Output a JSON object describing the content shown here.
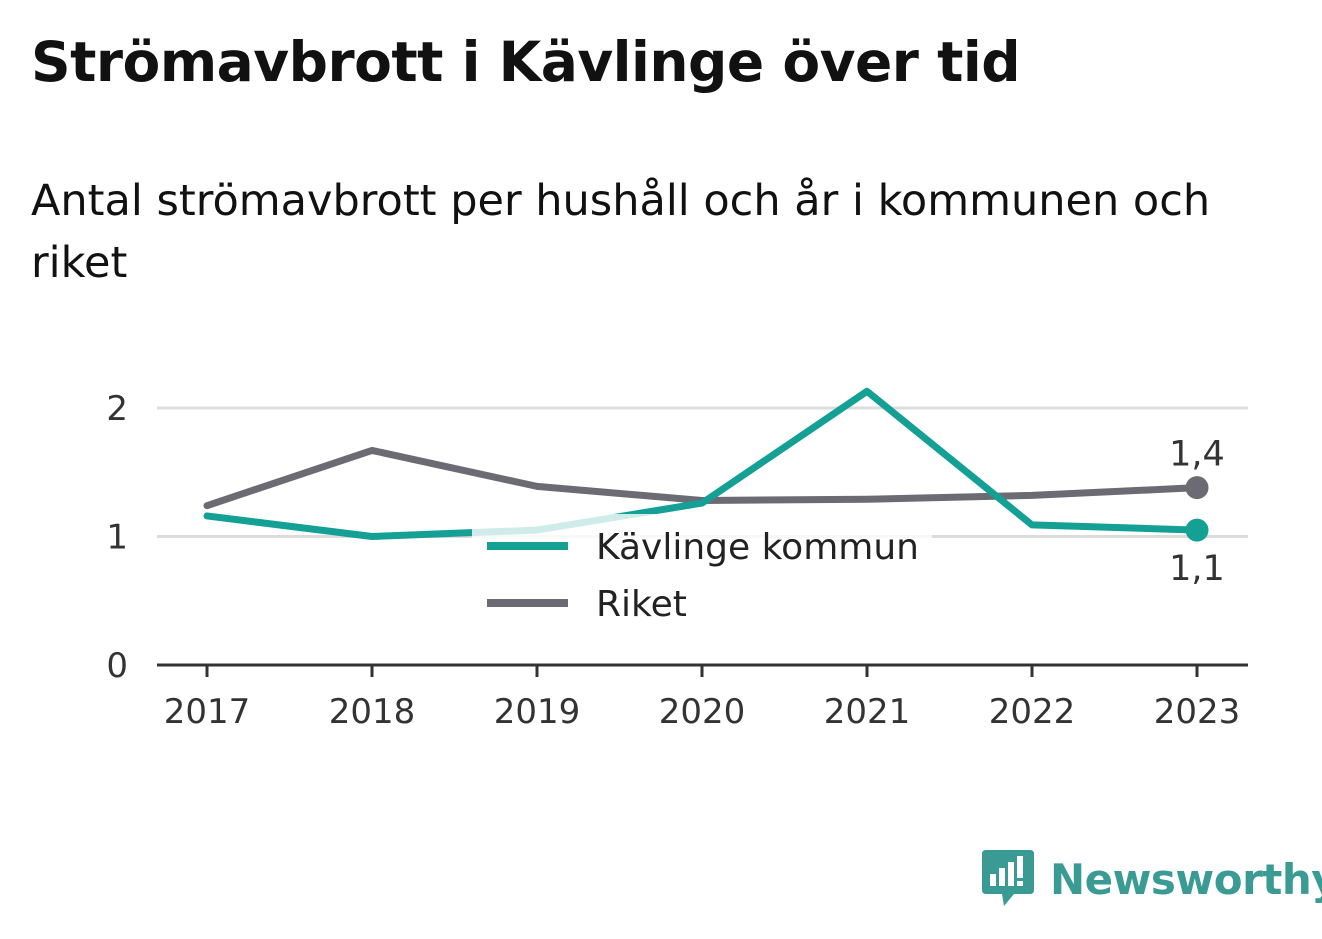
{
  "title": "Strömavbrott i Kävlinge över tid",
  "subtitle": "Antal strömavbrott per hushåll och år i kommunen och riket",
  "chart_data": {
    "type": "line",
    "x": [
      "2017",
      "2018",
      "2019",
      "2020",
      "2021",
      "2022",
      "2023"
    ],
    "ylim": [
      0,
      2.25
    ],
    "yticks": [
      "0",
      "1",
      "2"
    ],
    "grid": true,
    "legend_position": "center",
    "series": [
      {
        "name": "Kävlinge kommun",
        "color": "#14a095",
        "values": [
          1.16,
          1.0,
          1.05,
          1.26,
          2.13,
          1.09,
          1.05
        ],
        "end_label": "1,1"
      },
      {
        "name": "Riket",
        "color": "#6c6b73",
        "values": [
          1.24,
          1.67,
          1.39,
          1.28,
          1.29,
          1.32,
          1.38
        ],
        "end_label": "1,4"
      }
    ]
  },
  "brand": {
    "name": "Newsworthy",
    "icon": "newsworthy-logo-icon",
    "color": "#3a9a94"
  }
}
